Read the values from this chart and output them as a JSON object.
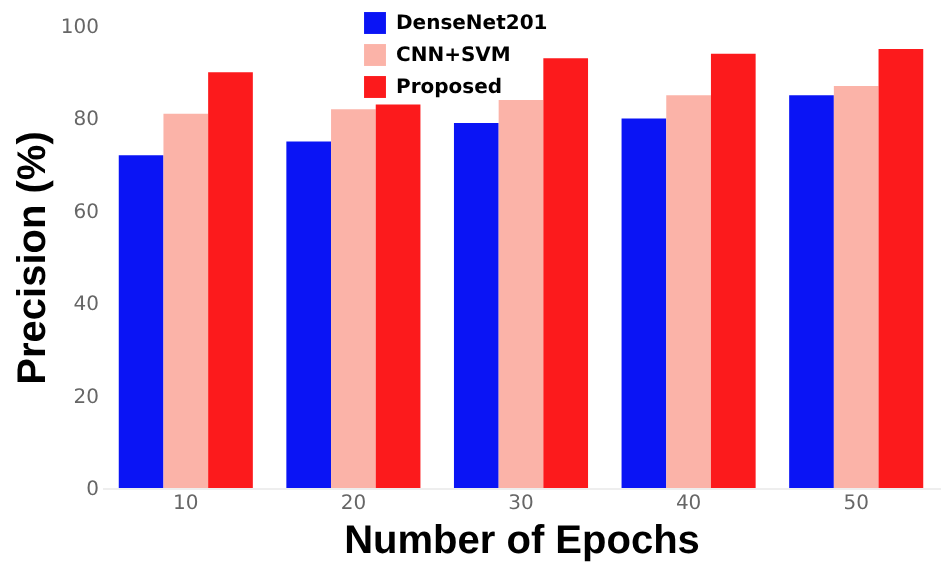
{
  "chart_data": {
    "type": "bar",
    "xlabel": "Number of Epochs",
    "ylabel": "Precision (%)",
    "categories": [
      "10",
      "20",
      "30",
      "40",
      "50"
    ],
    "series": [
      {
        "name": "DenseNet201",
        "color": "#0a14f5",
        "values": [
          72,
          75,
          79,
          80,
          85
        ]
      },
      {
        "name": "CNN+SVM",
        "color": "#fbb3a8",
        "values": [
          81,
          82,
          84,
          85,
          87
        ]
      },
      {
        "name": "Proposed",
        "color": "#fc1a1c",
        "values": [
          90,
          83,
          93,
          94,
          95
        ]
      }
    ],
    "ylim": [
      0,
      100
    ],
    "yticks": [
      0,
      20,
      40,
      60,
      80,
      100
    ],
    "legend": "top",
    "grid": false
  }
}
